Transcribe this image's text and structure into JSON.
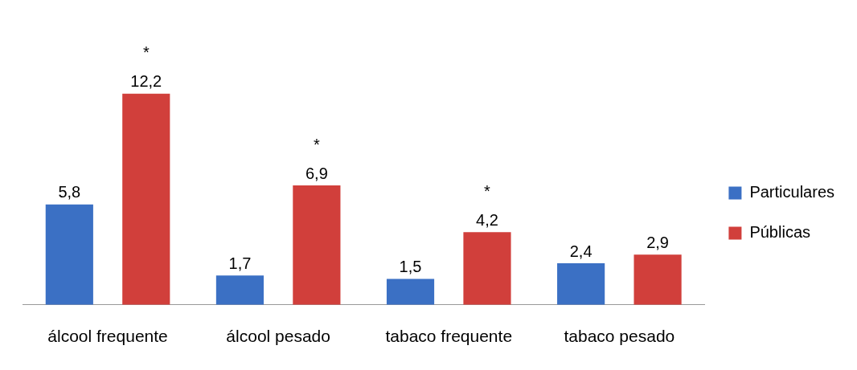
{
  "chart_data": {
    "type": "bar",
    "categories": [
      "álcool frequente",
      "álcool pesado",
      "tabaco frequente",
      "tabaco pesado"
    ],
    "series": [
      {
        "name": "Particulares",
        "color": "#3b70c4",
        "values": [
          5.8,
          1.7,
          1.5,
          2.4
        ],
        "value_labels": [
          "5,8",
          "1,7",
          "1,5",
          "2,4"
        ]
      },
      {
        "name": "Públicas",
        "color": "#d13f3b",
        "values": [
          12.2,
          6.9,
          4.2,
          2.9
        ],
        "value_labels": [
          "12,2",
          "6,9",
          "4,2",
          "2,9"
        ]
      }
    ],
    "annotations": [
      "*",
      "*",
      "*"
    ],
    "legend": "right",
    "grid": false
  }
}
